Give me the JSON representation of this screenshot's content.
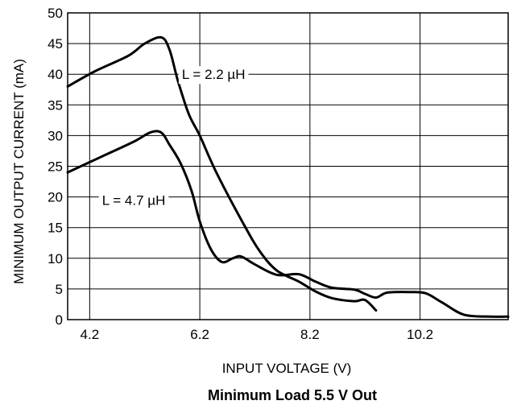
{
  "chart_data": {
    "type": "line",
    "title": "",
    "caption": "Minimum Load 5.5 V Out",
    "xlabel": "INPUT VOLTAGE (V)",
    "ylabel": "MINIMUM OUTPUT CURRENT (mA)",
    "xlim": [
      3.8,
      11.8
    ],
    "ylim": [
      0,
      50
    ],
    "xticks": [
      4.2,
      6.2,
      8.2,
      10.2
    ],
    "xtick_labels": [
      "4.2",
      "6.2",
      "8.2",
      "10.2"
    ],
    "yticks": [
      0,
      5,
      10,
      15,
      20,
      25,
      30,
      35,
      40,
      45,
      50
    ],
    "ytick_labels": [
      "0",
      "5",
      "10",
      "15",
      "20",
      "25",
      "30",
      "35",
      "40",
      "45",
      "50"
    ],
    "grid": true,
    "series": [
      {
        "name": "L = 2.2 µH",
        "color": "#000000",
        "x": [
          3.8,
          4.3,
          4.9,
          5.2,
          5.5,
          5.65,
          5.8,
          6.0,
          6.2,
          6.5,
          7.0,
          7.3,
          7.6,
          8.0,
          8.3,
          8.6,
          9.0,
          9.2,
          9.4
        ],
        "y": [
          38.0,
          40.5,
          43.0,
          45.0,
          46.0,
          44.0,
          39.0,
          33.5,
          30.0,
          24.0,
          15.5,
          11.0,
          8.0,
          6.2,
          4.6,
          3.5,
          3.0,
          3.2,
          1.5
        ]
      },
      {
        "name": "L = 4.7 µH",
        "color": "#000000",
        "x": [
          3.8,
          4.4,
          5.0,
          5.3,
          5.5,
          5.65,
          5.85,
          6.05,
          6.2,
          6.4,
          6.6,
          6.8,
          6.95,
          7.2,
          7.6,
          8.0,
          8.3,
          8.6,
          9.0,
          9.2,
          9.4,
          9.6,
          10.0,
          10.3,
          10.6,
          11.0,
          11.5,
          11.8
        ],
        "y": [
          24.0,
          26.5,
          29.0,
          30.5,
          30.5,
          28.5,
          25.5,
          21.0,
          16.0,
          11.5,
          9.4,
          10.0,
          10.3,
          9.0,
          7.3,
          7.4,
          6.2,
          5.2,
          4.9,
          4.2,
          3.6,
          4.4,
          4.5,
          4.3,
          2.8,
          0.8,
          0.5,
          0.5
        ]
      }
    ],
    "annotations": [
      {
        "text": "L = 2.2 µH",
        "x": 6.45,
        "y": 40
      },
      {
        "text": "L = 4.7 µH",
        "x": 5.0,
        "y": 19.5
      }
    ]
  }
}
